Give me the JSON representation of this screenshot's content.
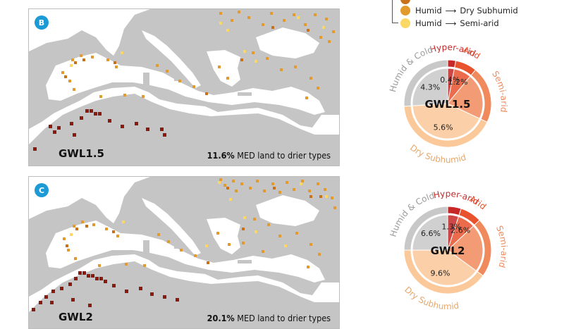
{
  "legend": {
    "rows": [
      {
        "from": "",
        "to": "",
        "color": "#c8701a"
      },
      {
        "from": "Humid",
        "to": "Dry Subhumid",
        "color": "#e39a2c"
      },
      {
        "from": "Humid",
        "to": "Semi-arid",
        "color": "#fbd766"
      }
    ],
    "arrow_icon": "right-arrow-icon"
  },
  "panels": [
    {
      "letter": "B",
      "gwl": "GWL1.5",
      "stat_value": "11.6%",
      "stat_text": " MED land to drier types"
    },
    {
      "letter": "C",
      "gwl": "GWL2",
      "stat_value": "20.1%",
      "stat_text": " MED land to drier types"
    }
  ],
  "donuts": [
    {
      "center_label": "GWL1.5",
      "categories": [
        {
          "name": "Hyper-arid",
          "color": "#c62828",
          "outer_pct": 3,
          "inner_pct": 0.4,
          "inner_label": "0.4%"
        },
        {
          "name": "Arid",
          "color": "#e8532e",
          "outer_pct": 8,
          "inner_pct": 1.2,
          "inner_label": "1.2%"
        },
        {
          "name": "Semi-arid",
          "color": "#f08a5d",
          "outer_pct": 21,
          "inner_pct": 0,
          "inner_label": ""
        },
        {
          "name": "Dry Subhumid",
          "color": "#fbc89a",
          "outer_pct": 42,
          "inner_pct": 5.6,
          "inner_label": "5.6%"
        },
        {
          "name": "Humid & Cold",
          "color": "#c8c8c8",
          "outer_pct": 26,
          "inner_pct": 4.3,
          "inner_label": "4.3%"
        }
      ]
    },
    {
      "center_label": "GWL2",
      "categories": [
        {
          "name": "Hyper-arid",
          "color": "#c62828",
          "outer_pct": 5,
          "inner_pct": 1.3,
          "inner_label": "1.3%"
        },
        {
          "name": "Arid",
          "color": "#e8532e",
          "outer_pct": 8,
          "inner_pct": 2.6,
          "inner_label": "2.6%"
        },
        {
          "name": "Semi-arid",
          "color": "#f08a5d",
          "outer_pct": 22,
          "inner_pct": 0,
          "inner_label": ""
        },
        {
          "name": "Dry Subhumid",
          "color": "#fbc89a",
          "outer_pct": 40,
          "inner_pct": 9.6,
          "inner_label": "9.6%"
        },
        {
          "name": "Humid & Cold",
          "color": "#c8c8c8",
          "outer_pct": 25,
          "inner_pct": 6.6,
          "inner_label": "6.6%"
        }
      ]
    }
  ],
  "map_colors": {
    "land": "#c5c5c5",
    "sea": "#ffffff",
    "humid_to_semiarid": "#fbd766",
    "humid_to_drysubhumid": "#e39a2c",
    "to_arid": "#c8701a",
    "to_hyperarid": "#8b1a0e"
  }
}
